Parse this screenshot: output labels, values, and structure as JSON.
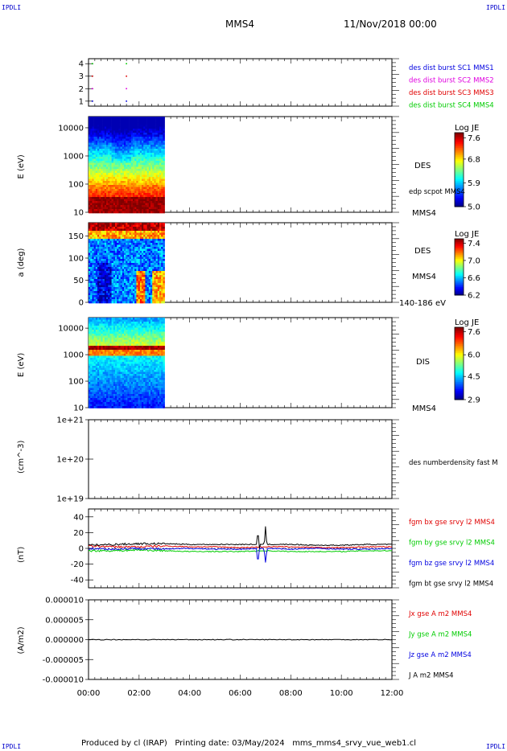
{
  "corners": {
    "tl": "IPDLI",
    "tr": "IPDLI",
    "bl": "IPDLI",
    "br": "IPDLI"
  },
  "header": {
    "spacecraft": "MMS4",
    "date": "11/Nov/2018 00:00"
  },
  "footer": {
    "text": "Produced by cl (IRAP)   Printing date: 03/May/2024   mms_mms4_srvy_vue_web1.cl"
  },
  "colors": {
    "red": "#e00000",
    "green": "#00cc00",
    "blue": "#0000e0",
    "magenta": "#e000e0",
    "black": "#000000"
  },
  "chart_data": [
    {
      "type": "scatter",
      "x_ticks": [
        "00:00",
        "02:00",
        "04:00",
        "06:00",
        "08:00",
        "10:00",
        "12:00"
      ],
      "xlim_hours": [
        0,
        12
      ],
      "yticks": [
        "1",
        "2",
        "3",
        "4"
      ],
      "ylim": [
        0.6,
        4.4
      ],
      "legend": [
        {
          "label": "des dist burst SC1 MMS1",
          "color": "#0000e0"
        },
        {
          "label": "des dist burst SC2 MMS2",
          "color": "#e000e0"
        },
        {
          "label": "des dist burst SC3 MMS3",
          "color": "#e00000"
        },
        {
          "label": "des dist burst SC4 MMS4",
          "color": "#00cc00"
        }
      ],
      "series": [
        {
          "name": "des dist burst SC1 MMS1",
          "y": 1,
          "x_hours": [
            0.15,
            1.5
          ]
        },
        {
          "name": "des dist burst SC2 MMS2",
          "y": 2,
          "x_hours": [
            0.15,
            1.5
          ]
        },
        {
          "name": "des dist burst SC3 MMS3",
          "y": 3,
          "x_hours": [
            0.15,
            1.5
          ]
        },
        {
          "name": "des dist burst SC4 MMS4",
          "y": 4,
          "x_hours": [
            0.15,
            1.5
          ]
        }
      ]
    },
    {
      "type": "heatmap",
      "ylabel": "E (eV)",
      "yscale": "log",
      "ylim": [
        10,
        25000
      ],
      "yticks": [
        "10",
        "100",
        "1000",
        "10000"
      ],
      "data_x_range_hours": [
        0,
        2.95
      ],
      "right_labels": [
        "DES",
        "edp scpot MMS4",
        "MMS4"
      ],
      "colorbar": {
        "title": "Log JE",
        "min": 5.0,
        "max": 7.8,
        "ticks": [
          "5.0",
          "5.9",
          "6.8",
          "7.6"
        ]
      },
      "profile": "des-energy"
    },
    {
      "type": "heatmap",
      "ylabel": "a (deg)",
      "ylim": [
        0,
        180
      ],
      "yticks": [
        "0",
        "50",
        "100",
        "150"
      ],
      "data_x_range_hours": [
        0,
        2.95
      ],
      "right_labels": [
        "DES",
        "MMS4",
        "140-186 eV"
      ],
      "colorbar": {
        "title": "Log JE",
        "min": 6.2,
        "max": 7.5,
        "ticks": [
          "6.2",
          "6.6",
          "7.0",
          "7.4"
        ]
      },
      "profile": "pitch-angle"
    },
    {
      "type": "heatmap",
      "ylabel": "E (eV)",
      "yscale": "log",
      "ylim": [
        10,
        25000
      ],
      "yticks": [
        "10",
        "100",
        "1000",
        "10000"
      ],
      "data_x_range_hours": [
        0,
        2.95
      ],
      "right_labels": [
        "DIS",
        "MMS4"
      ],
      "colorbar": {
        "title": "Log JE",
        "min": 2.9,
        "max": 7.9,
        "ticks": [
          "2.9",
          "4.5",
          "6.0",
          "7.6"
        ]
      },
      "profile": "dis-energy"
    },
    {
      "type": "line",
      "ylabel": "(cm^-3)",
      "yscale": "log",
      "ylim": [
        1e+19,
        1e+21
      ],
      "yticks": [
        "1e+19",
        "1e+20",
        "1e+21"
      ],
      "right_labels": [
        "des numberdensity fast M"
      ],
      "series": []
    },
    {
      "type": "line",
      "ylabel": "(nT)",
      "ylim": [
        -50,
        50
      ],
      "yticks": [
        "-40",
        "-20",
        "0",
        "20",
        "40"
      ],
      "legend": [
        {
          "label": "fgm bx gse srvy l2 MMS4",
          "color": "#e00000"
        },
        {
          "label": "fgm by gse srvy l2 MMS4",
          "color": "#00cc00"
        },
        {
          "label": "fgm bz gse srvy l2 MMS4",
          "color": "#0000e0"
        },
        {
          "label": "fgm bt gse srvy l2 MMS4",
          "color": "#000000"
        }
      ],
      "series": [
        {
          "name": "fgm bx gse srvy l2 MMS4",
          "color": "#e00000",
          "x_hours": [
            0,
            1,
            2,
            3,
            4,
            5,
            6,
            7,
            8,
            9,
            10,
            11,
            12
          ],
          "values": [
            3,
            2,
            2,
            3,
            2,
            2,
            1,
            2,
            2,
            1,
            1,
            2,
            2
          ]
        },
        {
          "name": "fgm by gse srvy l2 MMS4",
          "color": "#00cc00",
          "x_hours": [
            0,
            1,
            2,
            3,
            4,
            5,
            6,
            7,
            8,
            9,
            10,
            11,
            12
          ],
          "values": [
            -3,
            -3,
            -2,
            -3,
            -4,
            -4,
            -4,
            -3,
            -4,
            -4,
            -4,
            -3,
            -3
          ]
        },
        {
          "name": "fgm bz gse srvy l2 MMS4",
          "color": "#0000e0",
          "x_hours": [
            0,
            1,
            2,
            3,
            4,
            5,
            6,
            7,
            8,
            9,
            10,
            11,
            12
          ],
          "values": [
            0,
            -1,
            0,
            -1,
            0,
            -1,
            -1,
            0,
            -1,
            0,
            -1,
            -1,
            0
          ]
        },
        {
          "name": "fgm bt gse srvy l2 MMS4",
          "color": "#000000",
          "x_hours": [
            0,
            1,
            2,
            3,
            4,
            5,
            6,
            7,
            8,
            9,
            10,
            11,
            12
          ],
          "values": [
            4,
            5,
            6,
            6,
            5,
            5,
            5,
            5,
            5,
            4,
            4,
            5,
            5
          ]
        }
      ],
      "spikes": [
        {
          "x_hours": 6.7,
          "bt": 24,
          "bz": -20
        },
        {
          "x_hours": 7.0,
          "bt": 28,
          "bz": -18
        }
      ]
    },
    {
      "type": "line",
      "ylabel": "(A/m2)",
      "ylim": [
        -1e-05,
        1e-05
      ],
      "yticks": [
        "-0.000010",
        "-0.000005",
        "0.000000",
        "0.000005",
        "0.000010"
      ],
      "legend": [
        {
          "label": "Jx gse A m2 MMS4",
          "color": "#e00000"
        },
        {
          "label": "Jy gse A m2 MMS4",
          "color": "#00cc00"
        },
        {
          "label": "Jz gse A m2 MMS4",
          "color": "#0000e0"
        },
        {
          "label": "J A m2 MMS4",
          "color": "#000000"
        }
      ],
      "series": [
        {
          "name": "J A m2 MMS4",
          "color": "#000000",
          "x_hours": [
            0,
            2,
            4,
            6,
            8,
            10,
            12
          ],
          "values": [
            0,
            0,
            0,
            0,
            0,
            0,
            0
          ]
        }
      ]
    }
  ]
}
